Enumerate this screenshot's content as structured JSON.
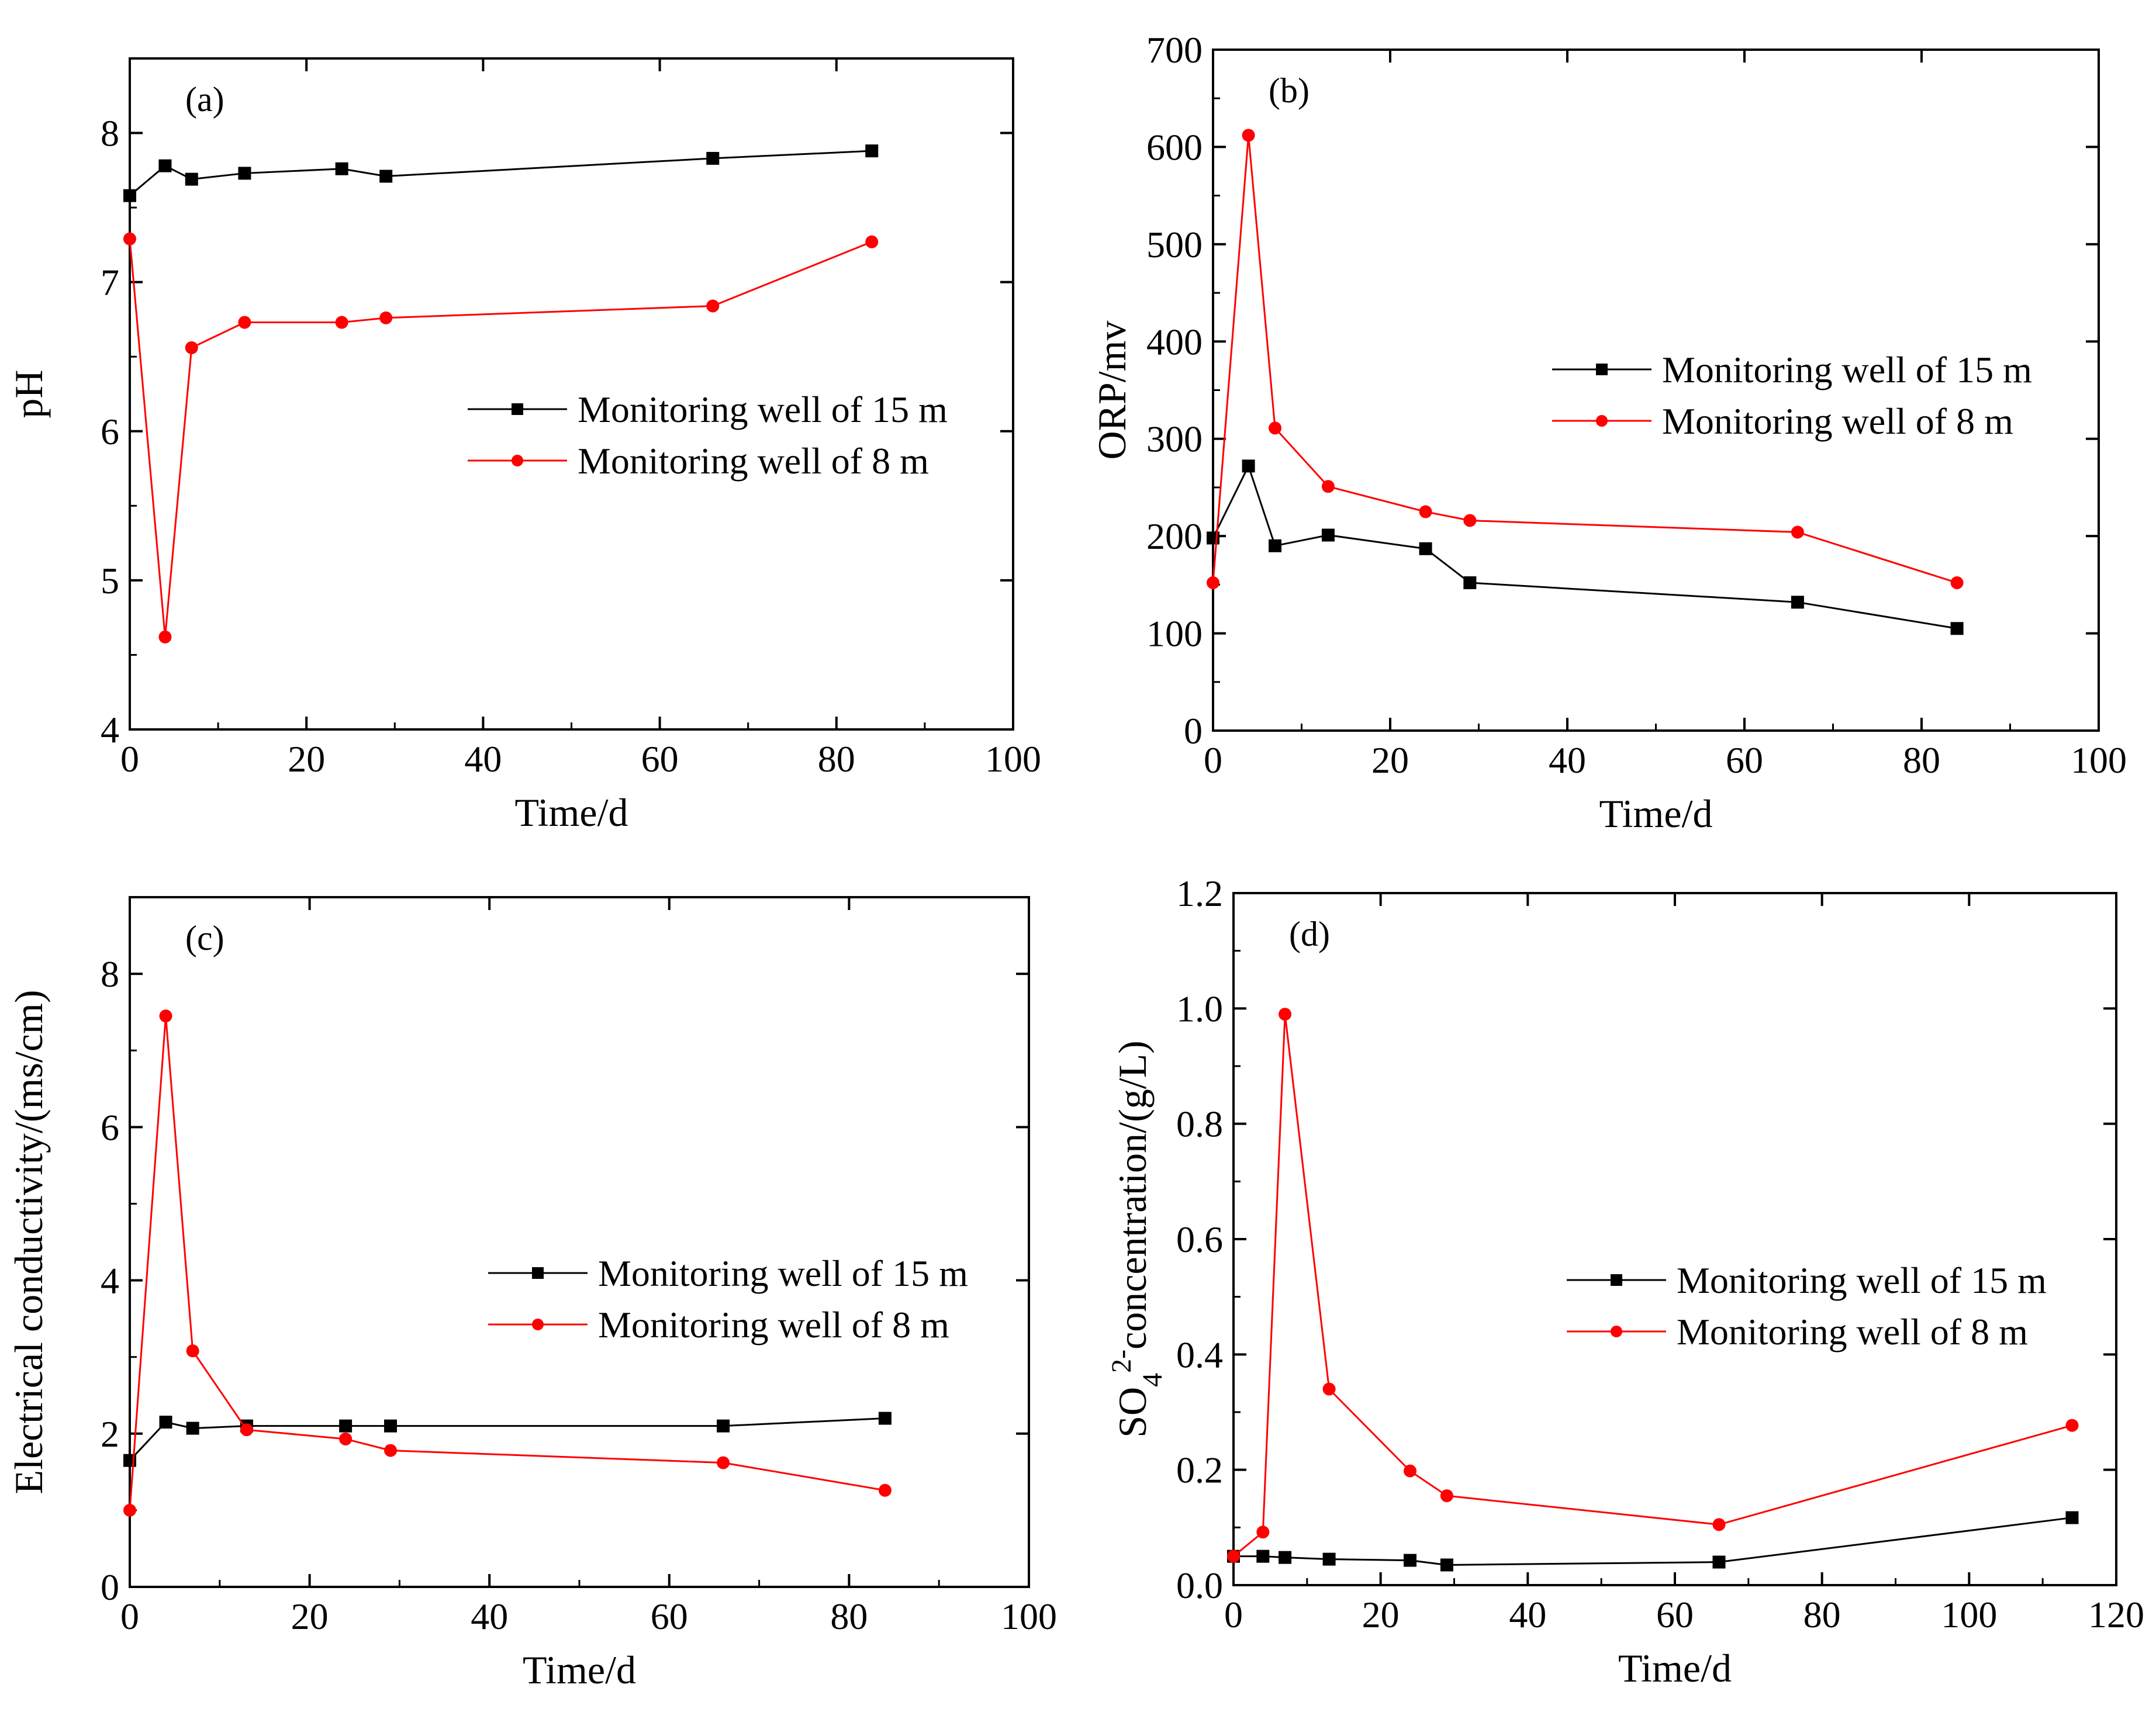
{
  "chart_data": [
    {
      "id": "a",
      "type": "line",
      "panel_label": "(a)",
      "xlabel": "Time/d",
      "ylabel": "pH",
      "xlim": [
        0,
        100
      ],
      "ylim": [
        4,
        8.5
      ],
      "xticks": [
        0,
        20,
        40,
        60,
        80,
        100
      ],
      "yticks": [
        4,
        5,
        6,
        7,
        8
      ],
      "legend_position": "center-right",
      "series": [
        {
          "name": "Monitoring well of 15 m",
          "color": "#000000",
          "marker": "square",
          "x": [
            0,
            4,
            7,
            13,
            24,
            29,
            66,
            84
          ],
          "y": [
            7.58,
            7.78,
            7.69,
            7.73,
            7.76,
            7.71,
            7.83,
            7.88
          ]
        },
        {
          "name": "Monitoring well of 8 m",
          "color": "#ff0000",
          "marker": "circle",
          "x": [
            0,
            4,
            7,
            13,
            24,
            29,
            66,
            84
          ],
          "y": [
            7.29,
            4.62,
            6.56,
            6.73,
            6.73,
            6.76,
            6.84,
            7.27
          ]
        }
      ]
    },
    {
      "id": "b",
      "type": "line",
      "panel_label": "(b)",
      "xlabel": "Time/d",
      "ylabel": "ORP/mv",
      "xlim": [
        0,
        100
      ],
      "ylim": [
        0,
        700
      ],
      "xticks": [
        0,
        20,
        40,
        60,
        80,
        100
      ],
      "yticks": [
        0,
        100,
        200,
        300,
        400,
        500,
        600,
        700
      ],
      "legend_position": "center-right",
      "series": [
        {
          "name": "Monitoring well of 15 m",
          "color": "#000000",
          "marker": "square",
          "x": [
            0,
            4,
            7,
            13,
            24,
            29,
            66,
            84
          ],
          "y": [
            198,
            272,
            190,
            201,
            187,
            152,
            132,
            105
          ]
        },
        {
          "name": "Monitoring well of 8 m",
          "color": "#ff0000",
          "marker": "circle",
          "x": [
            0,
            4,
            7,
            13,
            24,
            29,
            66,
            84
          ],
          "y": [
            152,
            612,
            311,
            251,
            225,
            216,
            204,
            152
          ]
        }
      ]
    },
    {
      "id": "c",
      "type": "line",
      "panel_label": "(c)",
      "xlabel": "Time/d",
      "ylabel": "Electrical conductivity/(ms/cm)",
      "xlim": [
        0,
        100
      ],
      "ylim": [
        0,
        9
      ],
      "xticks": [
        0,
        20,
        40,
        60,
        80,
        100
      ],
      "yticks": [
        0,
        2,
        4,
        6,
        8
      ],
      "legend_position": "center-right",
      "series": [
        {
          "name": "Monitoring well of 15 m",
          "color": "#000000",
          "marker": "square",
          "x": [
            0,
            4,
            7,
            13,
            24,
            29,
            66,
            84
          ],
          "y": [
            1.65,
            2.15,
            2.07,
            2.1,
            2.1,
            2.1,
            2.1,
            2.2
          ]
        },
        {
          "name": "Monitoring well of 8 m",
          "color": "#ff0000",
          "marker": "circle",
          "x": [
            0,
            4,
            7,
            13,
            24,
            29,
            66,
            84
          ],
          "y": [
            1.0,
            7.45,
            3.08,
            2.05,
            1.93,
            1.78,
            1.62,
            1.26
          ]
        }
      ]
    },
    {
      "id": "d",
      "type": "line",
      "panel_label": "(d)",
      "xlabel": "Time/d",
      "ylabel": "concentration/(g/L)",
      "ylabel_chem": {
        "base": "SO",
        "sub": "4",
        "sup": "2-"
      },
      "xlim": [
        0,
        120
      ],
      "ylim": [
        0,
        1.2
      ],
      "xticks": [
        0,
        20,
        40,
        60,
        80,
        100,
        120
      ],
      "yticks": [
        0.0,
        0.2,
        0.4,
        0.6,
        0.8,
        1.0,
        1.2
      ],
      "legend_position": "center-right",
      "series": [
        {
          "name": "Monitoring well of 15 m",
          "color": "#000000",
          "marker": "square",
          "x": [
            0,
            4,
            7,
            13,
            24,
            29,
            66,
            114
          ],
          "y": [
            0.05,
            0.05,
            0.048,
            0.045,
            0.043,
            0.035,
            0.04,
            0.117
          ]
        },
        {
          "name": "Monitoring well of 8 m",
          "color": "#ff0000",
          "marker": "circle",
          "x": [
            0,
            4,
            7,
            13,
            24,
            29,
            66,
            114
          ],
          "y": [
            0.05,
            0.092,
            0.99,
            0.34,
            0.198,
            0.155,
            0.105,
            0.277
          ]
        }
      ]
    }
  ]
}
